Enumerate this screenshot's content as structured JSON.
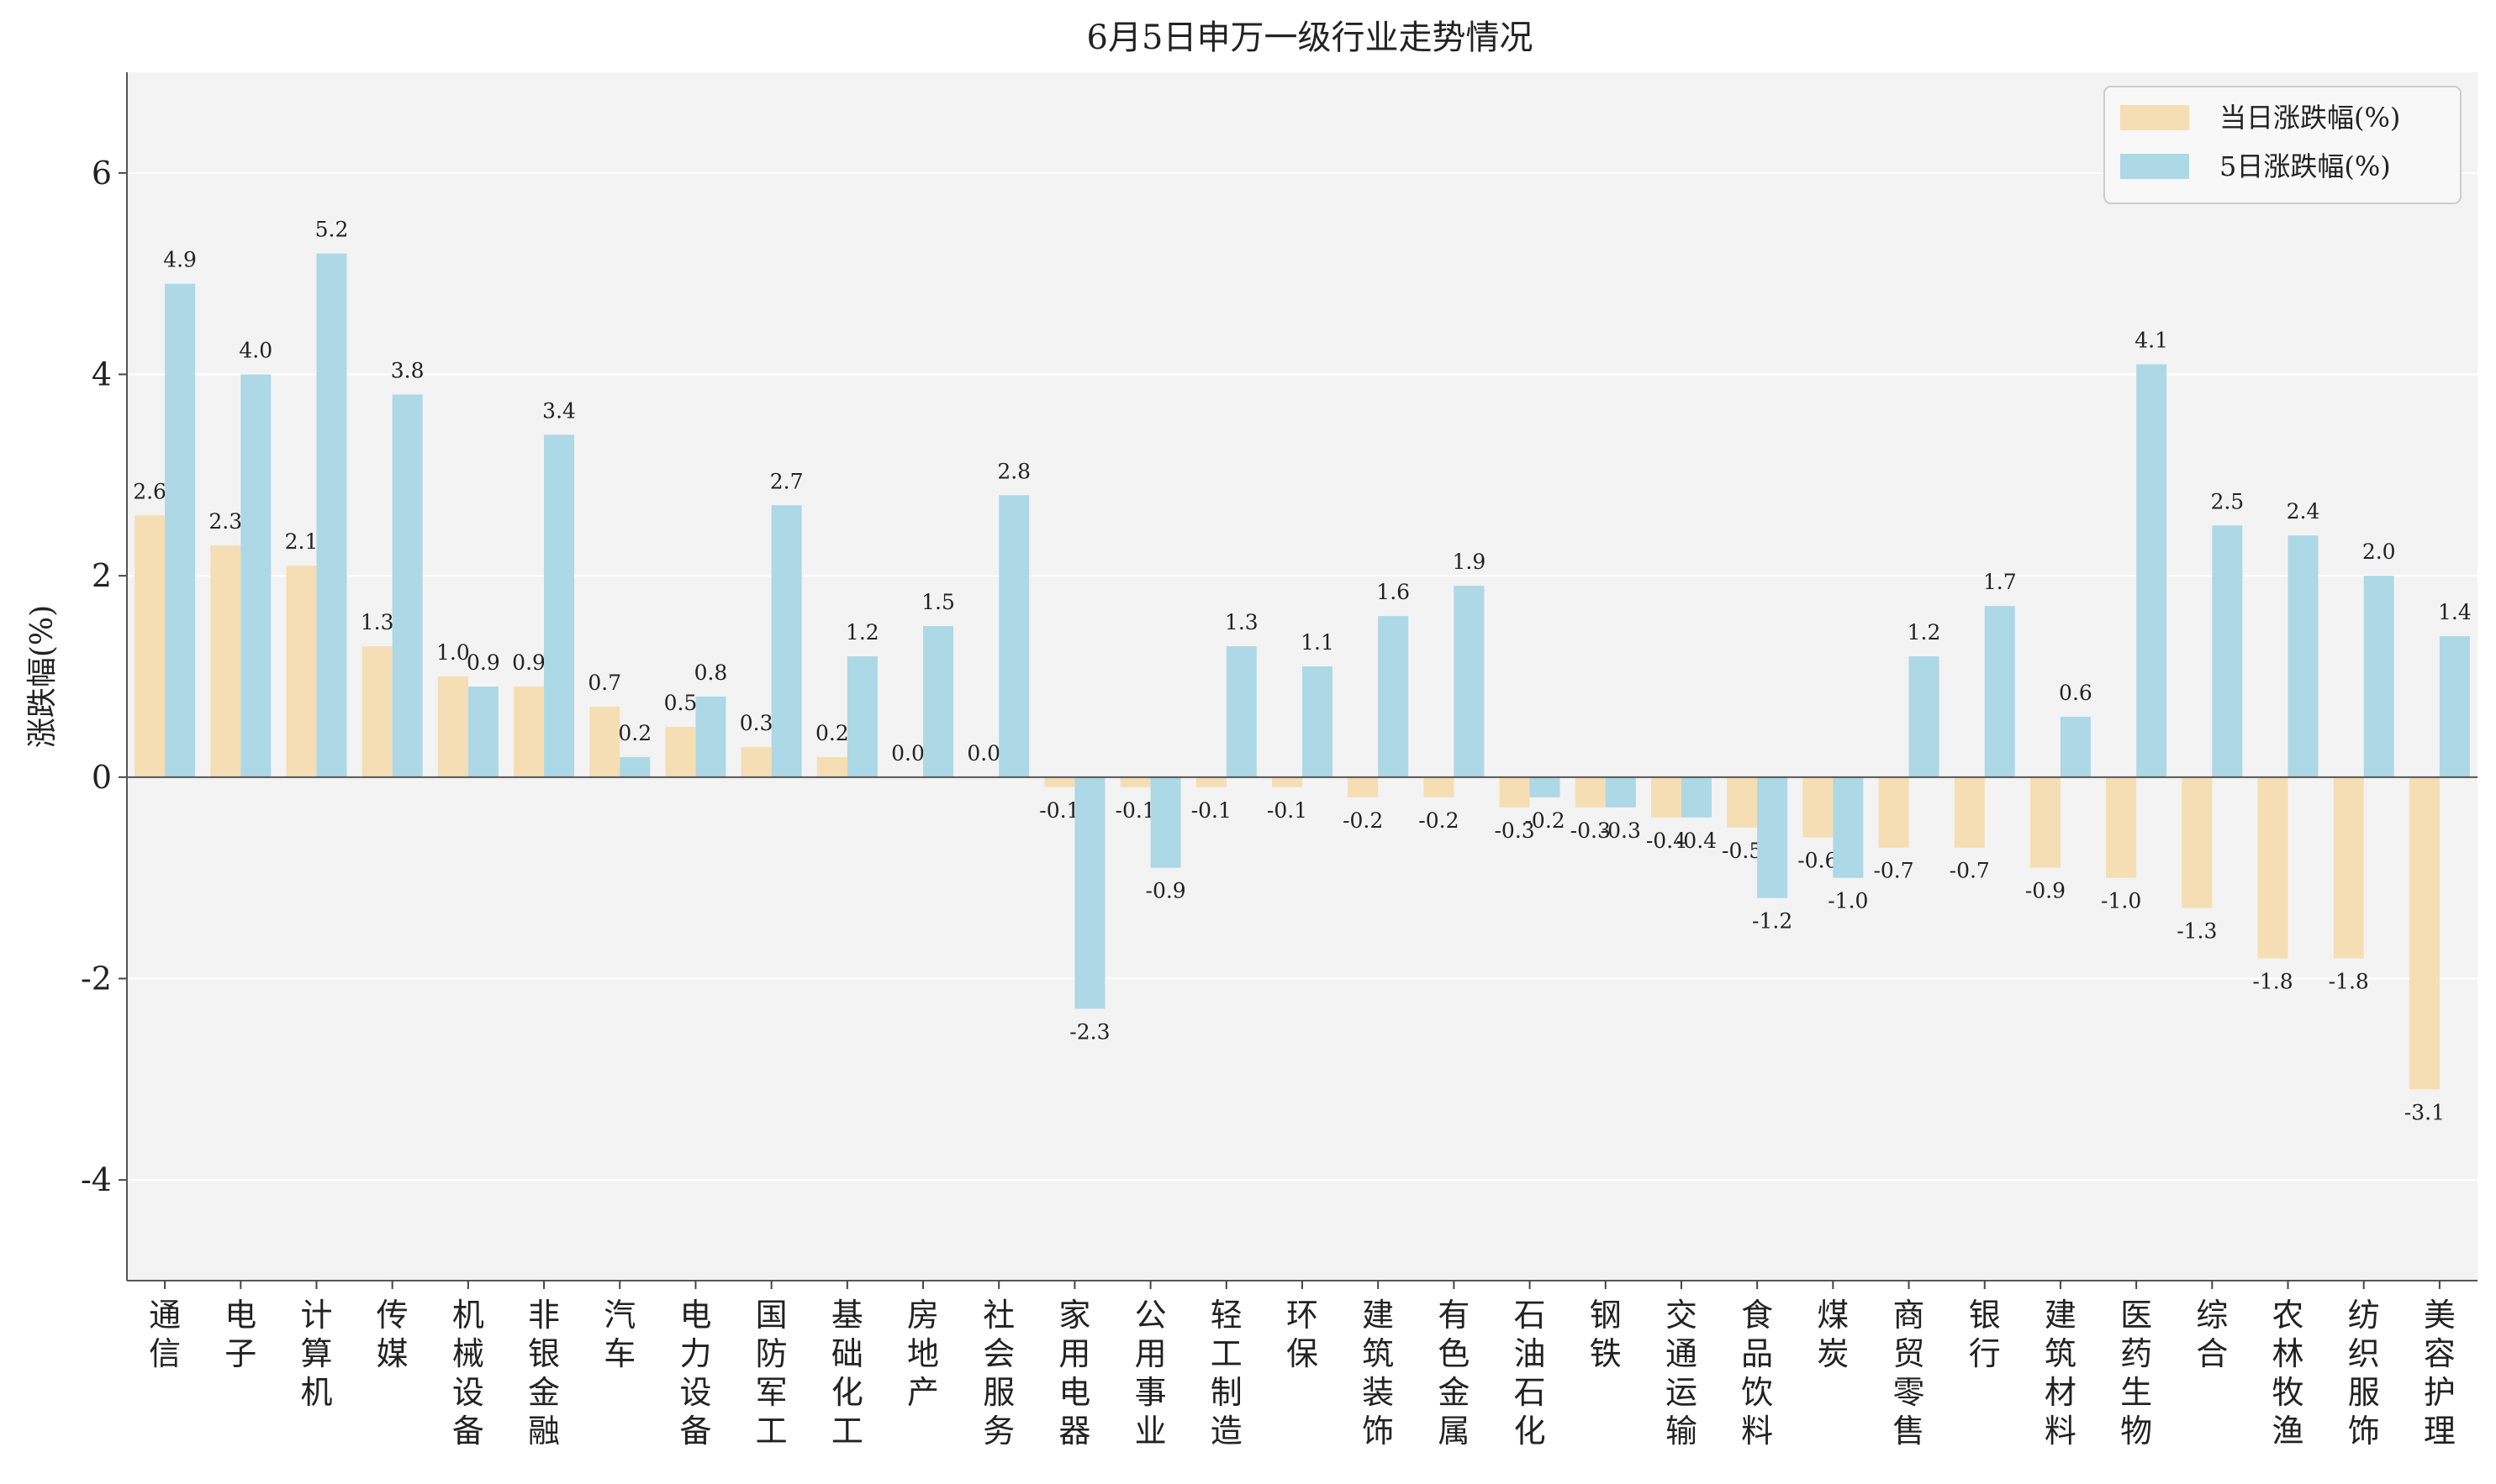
{
  "chart_data": {
    "type": "bar",
    "title": "6月5日申万一级行业走势情况",
    "xlabel": "",
    "ylabel": "涨跌幅(%)",
    "ylim": [
      -5,
      7
    ],
    "yticks": [
      -4,
      -2,
      0,
      2,
      4,
      6
    ],
    "grid": "horizontal",
    "legend_position": "top-right",
    "categories": [
      "通信",
      "电子",
      "计算机",
      "传媒",
      "机械设备",
      "非银金融",
      "汽车",
      "电力设备",
      "国防军工",
      "基础化工",
      "房地产",
      "社会服务",
      "家用电器",
      "公用事业",
      "轻工制造",
      "环保",
      "建筑装饰",
      "有色金属",
      "石油石化",
      "钢铁",
      "交通运输",
      "食品饮料",
      "煤炭",
      "商贸零售",
      "银行",
      "建筑材料",
      "医药生物",
      "综合",
      "农林牧渔",
      "纺织服饰",
      "美容护理"
    ],
    "series": [
      {
        "name": "当日涨跌幅(%)",
        "color": "#f5deb3",
        "values": [
          2.6,
          2.3,
          2.1,
          1.3,
          1.0,
          0.9,
          0.7,
          0.5,
          0.3,
          0.2,
          0.0,
          0.0,
          -0.1,
          -0.1,
          -0.1,
          -0.1,
          -0.2,
          -0.2,
          -0.3,
          -0.3,
          -0.4,
          -0.5,
          -0.6,
          -0.7,
          -0.7,
          -0.9,
          -1.0,
          -1.3,
          -1.8,
          -1.8,
          -3.1
        ]
      },
      {
        "name": "5日涨跌幅(%)",
        "color": "#add8e6",
        "values": [
          4.9,
          4.0,
          5.2,
          3.8,
          0.9,
          3.4,
          0.2,
          0.8,
          2.7,
          1.2,
          1.5,
          2.8,
          -2.3,
          -0.9,
          1.3,
          1.1,
          1.6,
          1.9,
          -0.2,
          -0.3,
          -0.4,
          -1.2,
          -1.0,
          1.2,
          1.7,
          0.6,
          4.1,
          2.5,
          2.4,
          2.0,
          1.4
        ]
      }
    ]
  }
}
